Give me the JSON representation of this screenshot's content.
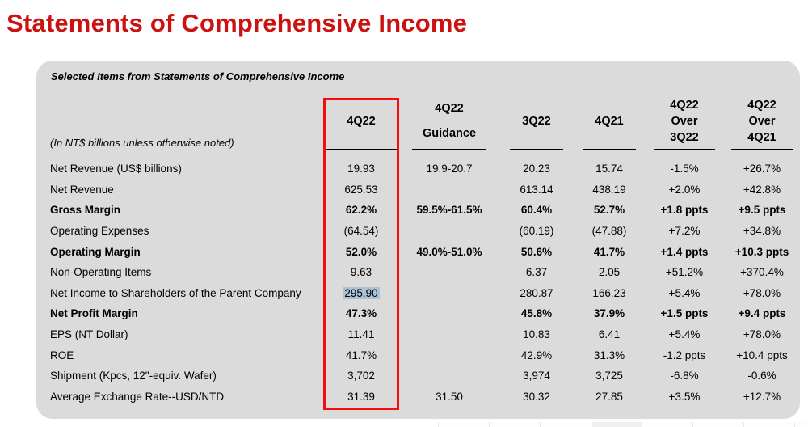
{
  "slide": {
    "title": "Statements of Comprehensive Income"
  },
  "panel": {
    "subtitle": "Selected Items from Statements of Comprehensive Income",
    "note": "(In NT$ billions unless otherwise noted)"
  },
  "colors": {
    "title_red": "#cc1111",
    "box_red": "#f50d0d",
    "panel_gray": "#dbdbdb",
    "highlight_blue": "#a9c2d4"
  },
  "table": {
    "columns": [
      {
        "id": "row-labels",
        "lines": []
      },
      {
        "id": "4q22",
        "lines": [
          "4Q22"
        ],
        "boxed": true
      },
      {
        "id": "4q22-guidance",
        "lines": [
          "4Q22",
          "Guidance"
        ]
      },
      {
        "id": "3q22",
        "lines": [
          "3Q22"
        ]
      },
      {
        "id": "4q21",
        "lines": [
          "4Q21"
        ]
      },
      {
        "id": "4q22-over-3q22",
        "lines": [
          "4Q22",
          "Over",
          "3Q22"
        ]
      },
      {
        "id": "4q22-over-4q21",
        "lines": [
          "4Q22",
          "Over",
          "4Q21"
        ]
      }
    ],
    "rows": [
      {
        "label": "Net Revenue (US$ billions)",
        "bold": false,
        "values": [
          "19.93",
          "19.9-20.7",
          "20.23",
          "15.74",
          "-1.5%",
          "+26.7%"
        ]
      },
      {
        "label": "Net Revenue",
        "bold": false,
        "values": [
          "625.53",
          "",
          "613.14",
          "438.19",
          "+2.0%",
          "+42.8%"
        ]
      },
      {
        "label": "Gross Margin",
        "bold": true,
        "values": [
          "62.2%",
          "59.5%-61.5%",
          "60.4%",
          "52.7%",
          "+1.8 ppts",
          "+9.5 ppts"
        ]
      },
      {
        "label": "Operating Expenses",
        "bold": false,
        "values": [
          "(64.54)",
          "",
          "(60.19)",
          "(47.88)",
          "+7.2%",
          "+34.8%"
        ]
      },
      {
        "label": "Operating Margin",
        "bold": true,
        "values": [
          "52.0%",
          "49.0%-51.0%",
          "50.6%",
          "41.7%",
          "+1.4 ppts",
          "+10.3 ppts"
        ]
      },
      {
        "label": "Non-Operating Items",
        "bold": false,
        "values": [
          "9.63",
          "",
          "6.37",
          "2.05",
          "+51.2%",
          "+370.4%"
        ]
      },
      {
        "label": "Net Income to Shareholders of the Parent Company",
        "bold": false,
        "highlight": 0,
        "values": [
          "295.90",
          "",
          "280.87",
          "166.23",
          "+5.4%",
          "+78.0%"
        ]
      },
      {
        "label": "Net Profit Margin",
        "bold": true,
        "values": [
          "47.3%",
          "",
          "45.8%",
          "37.9%",
          "+1.5 ppts",
          "+9.4 ppts"
        ]
      },
      {
        "label": "EPS (NT Dollar)",
        "bold": false,
        "values": [
          "11.41",
          "",
          "10.83",
          "6.41",
          "+5.4%",
          "+78.0%"
        ]
      },
      {
        "label": "ROE",
        "bold": false,
        "values": [
          "41.7%",
          "",
          "42.9%",
          "31.3%",
          "-1.2 ppts",
          "+10.4 ppts"
        ]
      },
      {
        "label": "Shipment (Kpcs, 12\"-equiv. Wafer)",
        "bold": false,
        "values": [
          "3,702",
          "",
          "3,974",
          "3,725",
          "-6.8%",
          "-0.6%"
        ]
      },
      {
        "label": "Average Exchange Rate--USD/NTD",
        "bold": false,
        "values": [
          "31.39",
          "31.50",
          "30.32",
          "27.85",
          "+3.5%",
          "+12.7%"
        ]
      }
    ]
  }
}
